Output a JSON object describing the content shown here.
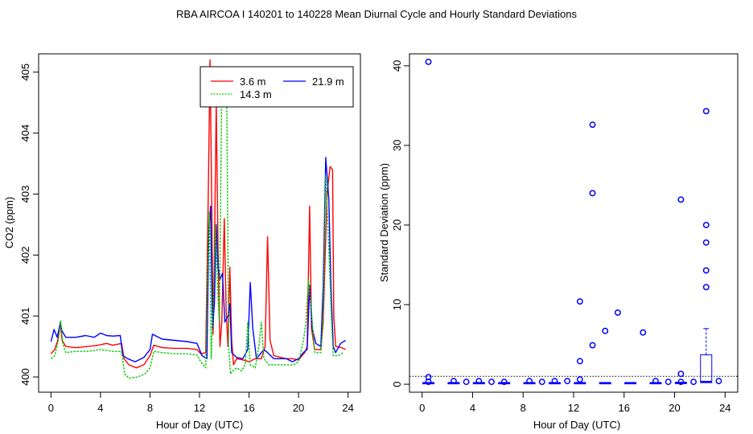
{
  "figure_title": "RBA   AIRCOA I   140201 to 140228   Mean Diurnal Cycle and Hourly Standard Deviations",
  "colors": {
    "red": "#ff0000",
    "blue": "#0000ff",
    "green": "#00cc00",
    "black": "#000000"
  },
  "chart_data": [
    {
      "type": "line",
      "title": "",
      "xlabel": "Hour of Day (UTC)",
      "ylabel": "CO2 (ppm)",
      "xlim": [
        -1,
        25
      ],
      "ylim": [
        399.75,
        405.3
      ],
      "xticks": [
        0,
        4,
        8,
        12,
        16,
        20,
        24
      ],
      "yticks": [
        400,
        401,
        402,
        403,
        404,
        405
      ],
      "legend": {
        "position": "top-right",
        "entries": [
          {
            "label": "3.6 m",
            "color": "#ff0000",
            "style": "solid"
          },
          {
            "label": "21.9 m",
            "color": "#0000ff",
            "style": "solid"
          },
          {
            "label": "14.3 m",
            "color": "#00cc00",
            "style": "dotted"
          }
        ]
      },
      "series": [
        {
          "name": "3.6 m",
          "color": "#ff0000",
          "points": [
            [
              0,
              400.38
            ],
            [
              0.3,
              400.45
            ],
            [
              0.55,
              400.6
            ],
            [
              0.75,
              400.9
            ],
            [
              0.9,
              400.6
            ],
            [
              1.2,
              400.5
            ],
            [
              2,
              400.48
            ],
            [
              3,
              400.5
            ],
            [
              3.8,
              400.52
            ],
            [
              4.5,
              400.55
            ],
            [
              5,
              400.52
            ],
            [
              5.7,
              400.55
            ],
            [
              5.9,
              400.3
            ],
            [
              6.3,
              400.2
            ],
            [
              6.9,
              400.15
            ],
            [
              7.5,
              400.2
            ],
            [
              8,
              400.35
            ],
            [
              8.3,
              400.52
            ],
            [
              9,
              400.48
            ],
            [
              10,
              400.47
            ],
            [
              11,
              400.47
            ],
            [
              11.8,
              400.45
            ],
            [
              12.1,
              400.38
            ],
            [
              12.5,
              400.4
            ],
            [
              12.7,
              402.9
            ],
            [
              12.85,
              405.2
            ],
            [
              13,
              402.6
            ],
            [
              13.1,
              400.7
            ],
            [
              13.2,
              402.0
            ],
            [
              13.35,
              404.5
            ],
            [
              13.5,
              402.0
            ],
            [
              13.65,
              400.5
            ],
            [
              13.8,
              400.9
            ],
            [
              14.0,
              402.6
            ],
            [
              14.15,
              401.1
            ],
            [
              14.3,
              400.5
            ],
            [
              14.45,
              401.8
            ],
            [
              14.6,
              400.6
            ],
            [
              14.75,
              400.2
            ],
            [
              15,
              400.3
            ],
            [
              15.5,
              400.28
            ],
            [
              16,
              400.25
            ],
            [
              16.5,
              400.3
            ],
            [
              17,
              400.3
            ],
            [
              17.3,
              400.5
            ],
            [
              17.5,
              402.3
            ],
            [
              17.7,
              400.6
            ],
            [
              18,
              400.35
            ],
            [
              19,
              400.3
            ],
            [
              19.5,
              400.3
            ],
            [
              20,
              400.28
            ],
            [
              20.5,
              400.4
            ],
            [
              20.7,
              400.5
            ],
            [
              20.9,
              402.8
            ],
            [
              21.05,
              400.8
            ],
            [
              21.3,
              400.45
            ],
            [
              21.8,
              400.45
            ],
            [
              22,
              400.9
            ],
            [
              22.3,
              403.0
            ],
            [
              22.55,
              403.45
            ],
            [
              22.75,
              403.4
            ],
            [
              22.85,
              401.0
            ],
            [
              23,
              400.5
            ],
            [
              23.5,
              400.48
            ],
            [
              23.8,
              400.45
            ]
          ]
        },
        {
          "name": "21.9 m",
          "color": "#0000ff",
          "points": [
            [
              0,
              400.58
            ],
            [
              0.25,
              400.78
            ],
            [
              0.5,
              400.65
            ],
            [
              0.75,
              400.88
            ],
            [
              0.9,
              400.75
            ],
            [
              1.2,
              400.65
            ],
            [
              2,
              400.65
            ],
            [
              2.8,
              400.68
            ],
            [
              3.5,
              400.65
            ],
            [
              4,
              400.72
            ],
            [
              4.5,
              400.68
            ],
            [
              5,
              400.67
            ],
            [
              5.6,
              400.68
            ],
            [
              5.8,
              400.35
            ],
            [
              6.2,
              400.3
            ],
            [
              6.8,
              400.25
            ],
            [
              7.5,
              400.32
            ],
            [
              8,
              400.45
            ],
            [
              8.2,
              400.7
            ],
            [
              9,
              400.62
            ],
            [
              10,
              400.6
            ],
            [
              11,
              400.58
            ],
            [
              11.8,
              400.55
            ],
            [
              12.2,
              400.35
            ],
            [
              12.6,
              400.3
            ],
            [
              12.75,
              402.4
            ],
            [
              12.9,
              402.8
            ],
            [
              13.05,
              400.8
            ],
            [
              13.2,
              401.2
            ],
            [
              13.35,
              402.5
            ],
            [
              13.5,
              401.8
            ],
            [
              13.65,
              401.6
            ],
            [
              13.85,
              401.7
            ],
            [
              14.05,
              400.9
            ],
            [
              14.3,
              401.0
            ],
            [
              14.45,
              401.2
            ],
            [
              14.6,
              400.4
            ],
            [
              15,
              400.32
            ],
            [
              15.5,
              400.3
            ],
            [
              15.9,
              400.45
            ],
            [
              16.1,
              401.55
            ],
            [
              16.3,
              400.8
            ],
            [
              16.6,
              400.3
            ],
            [
              17.2,
              400.45
            ],
            [
              17.5,
              400.4
            ],
            [
              18,
              400.3
            ],
            [
              19,
              400.3
            ],
            [
              19.5,
              400.25
            ],
            [
              20,
              400.3
            ],
            [
              20.4,
              400.4
            ],
            [
              20.7,
              400.45
            ],
            [
              20.9,
              401.5
            ],
            [
              21.1,
              400.8
            ],
            [
              21.4,
              400.55
            ],
            [
              21.8,
              400.5
            ],
            [
              22.0,
              401.5
            ],
            [
              22.2,
              403.6
            ],
            [
              22.45,
              402.9
            ],
            [
              22.6,
              401.6
            ],
            [
              22.8,
              400.5
            ],
            [
              23,
              400.4
            ],
            [
              23.4,
              400.55
            ],
            [
              23.8,
              400.6
            ]
          ]
        },
        {
          "name": "14.3 m",
          "color": "#00cc00",
          "points": [
            [
              0,
              400.3
            ],
            [
              0.3,
              400.35
            ],
            [
              0.6,
              400.6
            ],
            [
              0.78,
              400.92
            ],
            [
              0.95,
              400.55
            ],
            [
              1.2,
              400.4
            ],
            [
              2,
              400.42
            ],
            [
              3,
              400.42
            ],
            [
              4,
              400.45
            ],
            [
              5,
              400.42
            ],
            [
              5.7,
              400.42
            ],
            [
              5.95,
              400.05
            ],
            [
              6.3,
              399.98
            ],
            [
              7,
              400.0
            ],
            [
              7.6,
              400.05
            ],
            [
              8,
              400.15
            ],
            [
              8.3,
              400.42
            ],
            [
              9,
              400.4
            ],
            [
              10,
              400.38
            ],
            [
              11,
              400.38
            ],
            [
              11.8,
              400.36
            ],
            [
              12.1,
              400.25
            ],
            [
              12.5,
              400.15
            ],
            [
              12.65,
              401.7
            ],
            [
              12.8,
              402.7
            ],
            [
              12.95,
              400.3
            ],
            [
              13.15,
              401.5
            ],
            [
              13.3,
              402.5
            ],
            [
              13.45,
              401.5
            ],
            [
              13.6,
              400.9
            ],
            [
              13.8,
              404.75
            ],
            [
              14.0,
              404.75
            ],
            [
              14.2,
              404.75
            ],
            [
              14.35,
              400.5
            ],
            [
              14.5,
              400.05
            ],
            [
              14.7,
              400.1
            ],
            [
              15,
              400.15
            ],
            [
              15.4,
              400.1
            ],
            [
              15.7,
              400.2
            ],
            [
              15.9,
              400.9
            ],
            [
              16.1,
              400.2
            ],
            [
              16.5,
              400.15
            ],
            [
              16.8,
              400.5
            ],
            [
              17,
              400.9
            ],
            [
              17.2,
              400.3
            ],
            [
              17.6,
              400.2
            ],
            [
              18,
              400.2
            ],
            [
              19,
              400.2
            ],
            [
              19.6,
              400.2
            ],
            [
              20,
              400.25
            ],
            [
              20.4,
              400.6
            ],
            [
              20.6,
              400.9
            ],
            [
              20.8,
              401.6
            ],
            [
              21.0,
              401.2
            ],
            [
              21.3,
              400.4
            ],
            [
              21.8,
              400.4
            ],
            [
              22,
              401.0
            ],
            [
              22.2,
              403.3
            ],
            [
              22.45,
              402.1
            ],
            [
              22.65,
              401.0
            ],
            [
              22.8,
              400.35
            ],
            [
              23.2,
              400.35
            ],
            [
              23.6,
              400.4
            ]
          ]
        }
      ]
    },
    {
      "type": "scatter",
      "title": "",
      "xlabel": "Hour of Day (UTC)",
      "ylabel": "Standard Deviation (ppm)",
      "xlim": [
        -1,
        25
      ],
      "ylim": [
        -1,
        41.5
      ],
      "xticks": [
        0,
        4,
        8,
        12,
        16,
        20,
        24
      ],
      "yticks": [
        0,
        10,
        20,
        30,
        40
      ],
      "reference_line": {
        "y": 1.0,
        "style": "dotted"
      },
      "points": [
        [
          0.5,
          40.5
        ],
        [
          0.5,
          0.9
        ],
        [
          0.5,
          0.3
        ],
        [
          2.5,
          0.4
        ],
        [
          3.5,
          0.3
        ],
        [
          4.5,
          0.4
        ],
        [
          5.5,
          0.3
        ],
        [
          6.5,
          0.3
        ],
        [
          8.5,
          0.4
        ],
        [
          9.5,
          0.3
        ],
        [
          10.5,
          0.4
        ],
        [
          11.5,
          0.4
        ],
        [
          12.5,
          10.4
        ],
        [
          12.5,
          2.9
        ],
        [
          12.5,
          0.6
        ],
        [
          13.5,
          32.6
        ],
        [
          13.5,
          24.0
        ],
        [
          13.5,
          4.9
        ],
        [
          14.5,
          6.7
        ],
        [
          15.5,
          9.0
        ],
        [
          17.5,
          6.5
        ],
        [
          18.5,
          0.4
        ],
        [
          19.5,
          0.3
        ],
        [
          20.5,
          23.2
        ],
        [
          20.5,
          1.3
        ],
        [
          20.5,
          0.3
        ],
        [
          21.5,
          0.3
        ],
        [
          22.5,
          34.3
        ],
        [
          22.5,
          20.0
        ],
        [
          22.5,
          17.8
        ],
        [
          22.5,
          14.3
        ],
        [
          22.5,
          12.2
        ],
        [
          23.5,
          0.4
        ]
      ],
      "boxplots": [
        {
          "hour": 0.5,
          "q1": 0.1,
          "median": 0.15,
          "q3": 0.2
        },
        {
          "hour": 2.5,
          "q1": 0.1,
          "median": 0.15,
          "q3": 0.2
        },
        {
          "hour": 4.5,
          "q1": 0.1,
          "median": 0.15,
          "q3": 0.2
        },
        {
          "hour": 6.5,
          "q1": 0.1,
          "median": 0.15,
          "q3": 0.2
        },
        {
          "hour": 8.5,
          "q1": 0.1,
          "median": 0.15,
          "q3": 0.2
        },
        {
          "hour": 10.5,
          "q1": 0.1,
          "median": 0.15,
          "q3": 0.2
        },
        {
          "hour": 12.5,
          "q1": 0.1,
          "median": 0.15,
          "q3": 0.2
        },
        {
          "hour": 14.5,
          "q1": 0.1,
          "median": 0.15,
          "q3": 0.2
        },
        {
          "hour": 16.5,
          "q1": 0.1,
          "median": 0.15,
          "q3": 0.2
        },
        {
          "hour": 18.5,
          "q1": 0.1,
          "median": 0.15,
          "q3": 0.2
        },
        {
          "hour": 20.5,
          "q1": 0.1,
          "median": 0.15,
          "q3": 0.25
        },
        {
          "hour": 22.5,
          "q1": 0.2,
          "median": 0.3,
          "q3": 3.7,
          "whisker_high": 7.0
        }
      ]
    }
  ]
}
